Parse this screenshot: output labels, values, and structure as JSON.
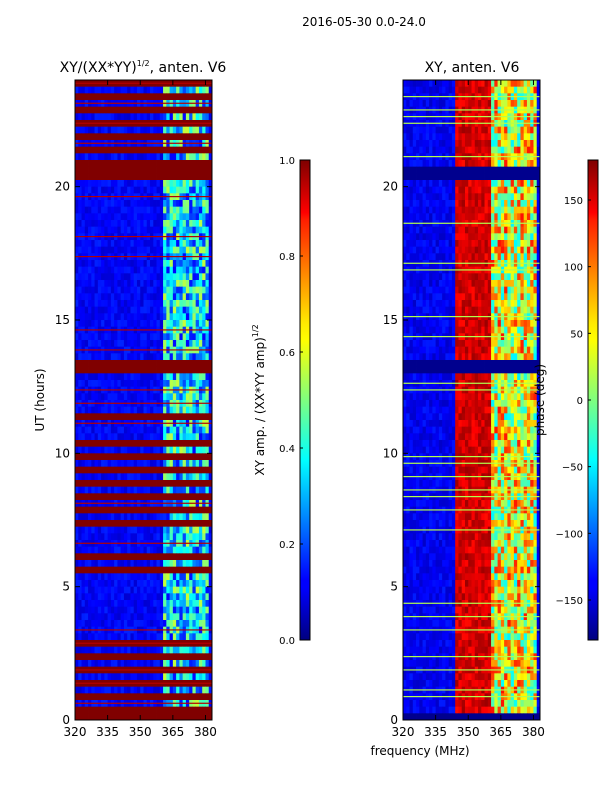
{
  "suptitle": "2016-05-30 0.0-24.0",
  "chart_data": [
    {
      "type": "heatmap",
      "title_main": "XY/(XX*YY)",
      "title_sup": "1/2",
      "title_suffix": ", anten. V6",
      "xlabel": "",
      "ylabel": "UT (hours)",
      "xlim": [
        320,
        383
      ],
      "ylim": [
        0,
        24
      ],
      "x_ticks": [
        320,
        335,
        350,
        365,
        380
      ],
      "y_ticks": [
        0,
        5,
        10,
        15,
        20
      ],
      "colorbar": {
        "label_main": "XY amp. / (XX*YY amp)",
        "label_sup": "1/2",
        "range": [
          0.0,
          1.0
        ],
        "ticks": [
          {
            "value": 0.0,
            "label": "0.0"
          },
          {
            "value": 0.2,
            "label": "0.2"
          },
          {
            "value": 0.4,
            "label": "0.4"
          },
          {
            "value": 0.6,
            "label": "0.6"
          },
          {
            "value": 0.8,
            "label": "0.8"
          },
          {
            "value": 1.0,
            "label": "1.0"
          }
        ]
      },
      "flagged_bands_hours": [
        [
          20.2,
          20.8
        ],
        [
          12.9,
          13.5
        ],
        [
          11.2,
          11.6
        ],
        [
          6.0,
          6.3
        ],
        [
          5.5,
          5.7
        ],
        [
          0.0,
          0.2
        ]
      ],
      "dense_flag_regions_hours": [
        [
          0.0,
          3.0
        ],
        [
          20.7,
          24.0
        ],
        [
          7.0,
          10.5
        ]
      ],
      "base_value": 0.12,
      "flag_value": 1.0,
      "variable_channel_range_mhz": [
        360,
        381
      ],
      "variable_channel_value": 0.35
    },
    {
      "type": "heatmap",
      "title": "XY, anten. V6",
      "xlabel": "frequency (MHz)",
      "ylabel": "",
      "xlim": [
        320,
        383
      ],
      "ylim": [
        0,
        24
      ],
      "x_ticks": [
        320,
        335,
        350,
        365,
        380
      ],
      "y_ticks": [
        0,
        5,
        10,
        15,
        20
      ],
      "colorbar": {
        "label": "phase (deg)",
        "range": [
          -180,
          180
        ],
        "ticks": [
          {
            "value": -150,
            "label": "−150"
          },
          {
            "value": -100,
            "label": "−100"
          },
          {
            "value": -50,
            "label": "−50"
          },
          {
            "value": 0,
            "label": "0"
          },
          {
            "value": 50,
            "label": "50"
          },
          {
            "value": 100,
            "label": "100"
          },
          {
            "value": 150,
            "label": "150"
          }
        ]
      },
      "flagged_bands_hours": [
        [
          12.9,
          13.5
        ],
        [
          20.2,
          20.8
        ],
        [
          0.0,
          0.2
        ]
      ],
      "base_phase_deg": -140,
      "high_phase_range_mhz": [
        344,
        360
      ],
      "high_phase_deg": 150,
      "variable_channel_range_mhz": [
        360,
        381
      ],
      "variable_channel_phase_deg": 40
    }
  ]
}
